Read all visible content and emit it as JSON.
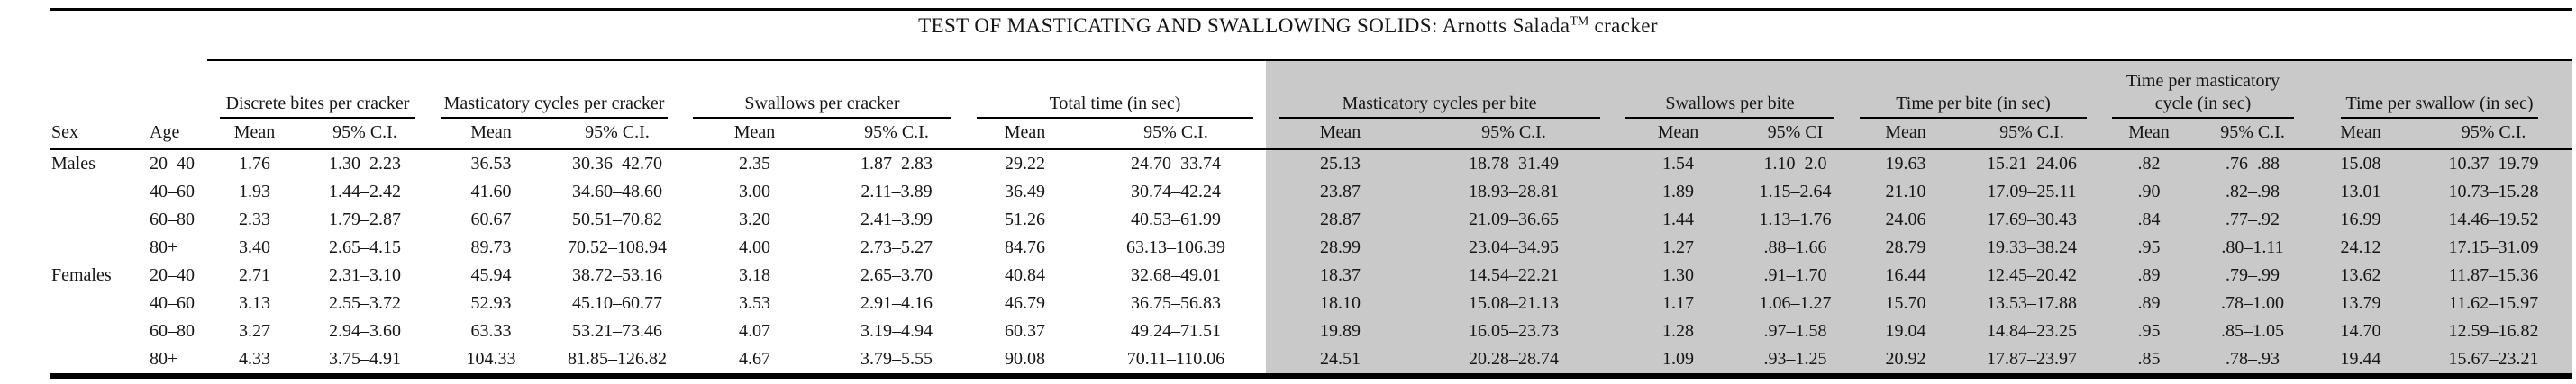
{
  "title": {
    "main": "TEST OF MASTICATING AND SWALLOWING SOLIDS: Arnotts Salada",
    "trademark": "TM",
    "suffix": " cracker"
  },
  "columns": {
    "sex": "Sex",
    "age": "Age"
  },
  "groups": [
    {
      "label": "Discrete bites per cracker",
      "mean_label": "Mean",
      "ci_label": "95% C.I.",
      "shaded": false
    },
    {
      "label": "Masticatory cycles per cracker",
      "mean_label": "Mean",
      "ci_label": "95% C.I.",
      "shaded": false
    },
    {
      "label": "Swallows per cracker",
      "mean_label": "Mean",
      "ci_label": "95% C.I.",
      "shaded": false
    },
    {
      "label": "Total time (in sec)",
      "mean_label": "Mean",
      "ci_label": "95% C.I.",
      "shaded": false
    },
    {
      "label": "Masticatory cycles per bite",
      "mean_label": "Mean",
      "ci_label": "95% C.I.",
      "shaded": true
    },
    {
      "label": "Swallows per bite",
      "mean_label": "Mean",
      "ci_label": "95% CI",
      "shaded": true
    },
    {
      "label": "Time per bite (in sec)",
      "mean_label": "Mean",
      "ci_label": "95% C.I.",
      "shaded": true
    },
    {
      "label": "Time per masticatory cycle (in sec)",
      "mean_label": "Mean",
      "ci_label": "95% C.I.",
      "shaded": true
    },
    {
      "label": "Time per swallow (in sec)",
      "mean_label": "Mean",
      "ci_label": "95% C.I.",
      "shaded": true
    }
  ],
  "rows": [
    {
      "sex": "Males",
      "age": "20–40",
      "values": [
        "1.76",
        "1.30–2.23",
        "36.53",
        "30.36–42.70",
        "2.35",
        "1.87–2.83",
        "29.22",
        "24.70–33.74",
        "25.13",
        "18.78–31.49",
        "1.54",
        "1.10–2.0",
        "19.63",
        "15.21–24.06",
        ".82",
        ".76–.88",
        "15.08",
        "10.37–19.79"
      ]
    },
    {
      "sex": "",
      "age": "40–60",
      "values": [
        "1.93",
        "1.44–2.42",
        "41.60",
        "34.60–48.60",
        "3.00",
        "2.11–3.89",
        "36.49",
        "30.74–42.24",
        "23.87",
        "18.93–28.81",
        "1.89",
        "1.15–2.64",
        "21.10",
        "17.09–25.11",
        ".90",
        ".82–.98",
        "13.01",
        "10.73–15.28"
      ]
    },
    {
      "sex": "",
      "age": "60–80",
      "values": [
        "2.33",
        "1.79–2.87",
        "60.67",
        "50.51–70.82",
        "3.20",
        "2.41–3.99",
        "51.26",
        "40.53–61.99",
        "28.87",
        "21.09–36.65",
        "1.44",
        "1.13–1.76",
        "24.06",
        "17.69–30.43",
        ".84",
        ".77–.92",
        "16.99",
        "14.46–19.52"
      ]
    },
    {
      "sex": "",
      "age": "80+",
      "values": [
        "3.40",
        "2.65–4.15",
        "89.73",
        "70.52–108.94",
        "4.00",
        "2.73–5.27",
        "84.76",
        "63.13–106.39",
        "28.99",
        "23.04–34.95",
        "1.27",
        ".88–1.66",
        "28.79",
        "19.33–38.24",
        ".95",
        ".80–1.11",
        "24.12",
        "17.15–31.09"
      ]
    },
    {
      "sex": "Females",
      "age": "20–40",
      "values": [
        "2.71",
        "2.31–3.10",
        "45.94",
        "38.72–53.16",
        "3.18",
        "2.65–3.70",
        "40.84",
        "32.68–49.01",
        "18.37",
        "14.54–22.21",
        "1.30",
        ".91–1.70",
        "16.44",
        "12.45–20.42",
        ".89",
        ".79–.99",
        "13.62",
        "11.87–15.36"
      ]
    },
    {
      "sex": "",
      "age": "40–60",
      "values": [
        "3.13",
        "2.55–3.72",
        "52.93",
        "45.10–60.77",
        "3.53",
        "2.91–4.16",
        "46.79",
        "36.75–56.83",
        "18.10",
        "15.08–21.13",
        "1.17",
        "1.06–1.27",
        "15.70",
        "13.53–17.88",
        ".89",
        ".78–1.00",
        "13.79",
        "11.62–15.97"
      ]
    },
    {
      "sex": "",
      "age": "60–80",
      "values": [
        "3.27",
        "2.94–3.60",
        "63.33",
        "53.21–73.46",
        "4.07",
        "3.19–4.94",
        "60.37",
        "49.24–71.51",
        "19.89",
        "16.05–23.73",
        "1.28",
        ".97–1.58",
        "19.04",
        "14.84–23.25",
        ".95",
        ".85–1.05",
        "14.70",
        "12.59–16.82"
      ]
    },
    {
      "sex": "",
      "age": "80+",
      "values": [
        "4.33",
        "3.75–4.91",
        "104.33",
        "81.85–126.82",
        "4.67",
        "3.79–5.55",
        "90.08",
        "70.11–110.06",
        "24.51",
        "20.28–28.74",
        "1.09",
        ".93–1.25",
        "20.92",
        "17.87–23.97",
        ".85",
        ".78–.93",
        "19.44",
        "15.67–23.21"
      ]
    }
  ],
  "colors": {
    "shade_bg": "#c9c9c9",
    "rule": "#000000"
  }
}
